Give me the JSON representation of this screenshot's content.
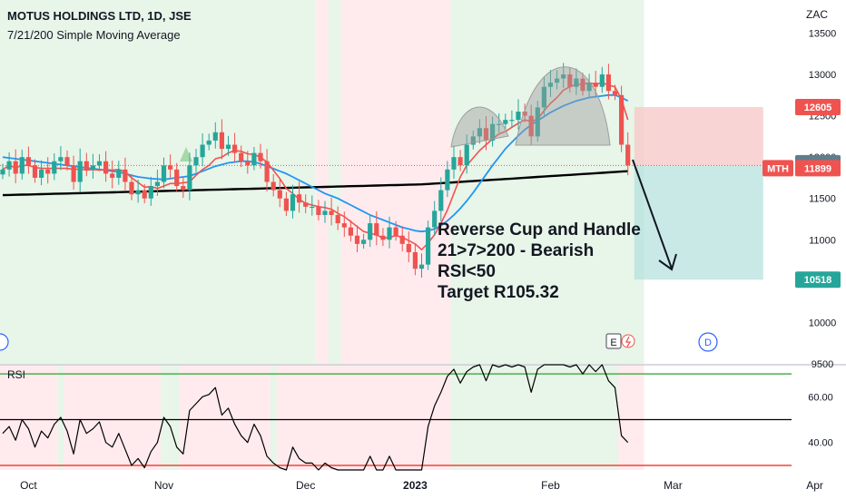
{
  "header": {
    "title": "MOTUS HOLDINGS LTD, 1D, JSE",
    "subtitle": "7/21/200 Simple Moving Average"
  },
  "currency": "ZAC",
  "rsi_label": "RSI",
  "symbol_tag": "MTH",
  "badges": {
    "earnings": "E",
    "dividend": "D"
  },
  "annotation": {
    "lines": [
      "Reverse Cup and Handle",
      "21>7>200 - Bearish",
      "RSI<50",
      "Target R105.32"
    ]
  },
  "colors": {
    "up": "#26a69a",
    "down": "#ef5350",
    "sma7": "#ef5350",
    "sma21": "#2196f3",
    "sma200": "#000000",
    "bull_bg": "#e8f5e9",
    "bear_bg": "#ffebee",
    "rsi_line": "#000000",
    "rsi_upper": "#4caf50",
    "rsi_lower": "#f44336"
  },
  "chart_data": {
    "type": "candlestick",
    "price_axis": {
      "ticks": [
        "13500",
        "13000",
        "12500",
        "12000",
        "11500",
        "11000",
        "10500",
        "10000",
        "9500"
      ],
      "ylim": [
        9500,
        13900
      ]
    },
    "price_labels": [
      {
        "value": 12605,
        "text": "12605",
        "color": "#ef5350"
      },
      {
        "value": 11905,
        "text": "11905",
        "color": "#607d8b"
      },
      {
        "value": 11899,
        "text": "11899",
        "color": "#ef5350"
      },
      {
        "value": 10518,
        "text": "10518",
        "color": "#26a69a"
      }
    ],
    "time_axis": {
      "ticks": [
        {
          "label": "Oct",
          "index": 4
        },
        {
          "label": "Nov",
          "index": 25
        },
        {
          "label": "Dec",
          "index": 47
        },
        {
          "label": "2023",
          "index": 64
        },
        {
          "label": "Feb",
          "index": 85
        },
        {
          "label": "Mar",
          "index": 104
        },
        {
          "label": "Apr",
          "index": 126
        }
      ]
    },
    "trade_zone": {
      "entry": 11899,
      "stop": 12605,
      "target": 10518,
      "from_index": 98,
      "to_index": 118
    },
    "rsi": {
      "ticks": [
        "60.00",
        "40.00"
      ],
      "levels": [
        70,
        50,
        30
      ],
      "ylim": [
        28,
        74
      ]
    },
    "regimes": [
      {
        "from": 0,
        "to": 49,
        "trend": "bull"
      },
      {
        "from": 49,
        "to": 51,
        "trend": "bear"
      },
      {
        "from": 51,
        "to": 53,
        "trend": "bull"
      },
      {
        "from": 53,
        "to": 70,
        "trend": "bear"
      },
      {
        "from": 70,
        "to": 100,
        "trend": "bull"
      }
    ],
    "rsi_regimes": [
      {
        "from": 0,
        "to": 9,
        "trend": "bear"
      },
      {
        "from": 9,
        "to": 10,
        "trend": "bull"
      },
      {
        "from": 10,
        "to": 25,
        "trend": "bear"
      },
      {
        "from": 25,
        "to": 28,
        "trend": "bull"
      },
      {
        "from": 28,
        "to": 42,
        "trend": "bear"
      },
      {
        "from": 42,
        "to": 43,
        "trend": "bull"
      },
      {
        "from": 43,
        "to": 70,
        "trend": "bear"
      },
      {
        "from": 70,
        "to": 96,
        "trend": "bull"
      },
      {
        "from": 96,
        "to": 100,
        "trend": "bear"
      }
    ],
    "close": [
      11850,
      11950,
      11800,
      12000,
      11900,
      11750,
      11850,
      11800,
      11950,
      12000,
      11900,
      11700,
      11950,
      11850,
      11900,
      11950,
      11800,
      11750,
      11850,
      11700,
      11550,
      11600,
      11500,
      11650,
      11700,
      11900,
      11850,
      11650,
      11600,
      11900,
      12000,
      12150,
      12200,
      12300,
      12100,
      12150,
      12050,
      11950,
      11900,
      12050,
      11950,
      11700,
      11600,
      11500,
      11350,
      11550,
      11450,
      11400,
      11400,
      11300,
      11350,
      11300,
      11200,
      11150,
      11050,
      10950,
      11000,
      11200,
      11050,
      11000,
      11150,
      11050,
      10950,
      10850,
      10650,
      10700,
      11150,
      11350,
      11600,
      11850,
      12000,
      11900,
      12150,
      12250,
      12350,
      12200,
      12400,
      12400,
      12450,
      12450,
      12550,
      12500,
      12250,
      12600,
      12850,
      12900,
      12950,
      13000,
      12850,
      12950,
      12800,
      12900,
      12850,
      13000,
      12800,
      12750,
      12150,
      11900
    ],
    "sma7": [
      11850,
      11900,
      11870,
      11900,
      11900,
      11875,
      11864,
      11864,
      11864,
      11864,
      11864,
      11850,
      11857,
      11843,
      11850,
      11843,
      11850,
      11843,
      11850,
      11821,
      11750,
      11693,
      11636,
      11643,
      11621,
      11650,
      11680,
      11680,
      11690,
      11700,
      11780,
      11850,
      11900,
      11980,
      12000,
      12050,
      12080,
      12070,
      12040,
      12030,
      12000,
      11940,
      11840,
      11740,
      11620,
      11560,
      11490,
      11440,
      11420,
      11400,
      11390,
      11370,
      11320,
      11280,
      11220,
      11160,
      11100,
      11080,
      11060,
      11020,
      11030,
      11050,
      11030,
      10990,
      10950,
      10880,
      10960,
      11060,
      11200,
      11360,
      11560,
      11760,
      11900,
      11990,
      12080,
      12150,
      12220,
      12280,
      12310,
      12360,
      12410,
      12450,
      12430,
      12460,
      12560,
      12650,
      12720,
      12810,
      12850,
      12880,
      12880,
      12900,
      12880,
      12900,
      12870,
      12850,
      12700,
      12450
    ],
    "sma21": [
      12000,
      11990,
      11980,
      11970,
      11960,
      11950,
      11940,
      11930,
      11920,
      11910,
      11900,
      11890,
      11880,
      11870,
      11860,
      11850,
      11840,
      11830,
      11820,
      11800,
      11780,
      11760,
      11750,
      11740,
      11735,
      11730,
      11740,
      11750,
      11760,
      11770,
      11800,
      11830,
      11860,
      11890,
      11910,
      11930,
      11940,
      11950,
      11950,
      11940,
      11920,
      11890,
      11860,
      11830,
      11800,
      11760,
      11720,
      11680,
      11640,
      11600,
      11560,
      11530,
      11500,
      11460,
      11420,
      11380,
      11340,
      11300,
      11270,
      11240,
      11210,
      11180,
      11150,
      11130,
      11110,
      11100,
      11110,
      11130,
      11170,
      11230,
      11300,
      11380,
      11470,
      11570,
      11680,
      11790,
      11900,
      12000,
      12100,
      12180,
      12260,
      12330,
      12390,
      12440,
      12490,
      12540,
      12580,
      12620,
      12650,
      12680,
      12700,
      12720,
      12730,
      12740,
      12750,
      12750,
      12720,
      12680
    ],
    "sma200": [
      11540,
      11542,
      11544,
      11546,
      11548,
      11550,
      11552,
      11554,
      11556,
      11558,
      11560,
      11562,
      11564,
      11566,
      11568,
      11570,
      11572,
      11574,
      11576,
      11578,
      11580,
      11582,
      11584,
      11586,
      11588,
      11590,
      11592,
      11594,
      11596,
      11598,
      11600,
      11602,
      11604,
      11606,
      11608,
      11610,
      11612,
      11614,
      11616,
      11618,
      11620,
      11622,
      11624,
      11626,
      11628,
      11630,
      11632,
      11634,
      11636,
      11638,
      11640,
      11642,
      11644,
      11646,
      11648,
      11650,
      11652,
      11654,
      11656,
      11658,
      11660,
      11662,
      11664,
      11666,
      11668,
      11670,
      11675,
      11680,
      11685,
      11690,
      11695,
      11700,
      11705,
      11710,
      11715,
      11720,
      11725,
      11730,
      11735,
      11740,
      11745,
      11750,
      11755,
      11760,
      11765,
      11770,
      11775,
      11780,
      11785,
      11790,
      11795,
      11800,
      11805,
      11810,
      11815,
      11820,
      11825,
      11830
    ],
    "rsi_values": [
      44,
      47,
      41,
      50,
      46,
      38,
      45,
      42,
      48,
      51,
      45,
      35,
      50,
      44,
      46,
      49,
      40,
      38,
      44,
      37,
      30,
      33,
      29,
      36,
      40,
      51,
      47,
      38,
      35,
      54,
      57,
      60,
      61,
      64,
      52,
      55,
      48,
      43,
      40,
      48,
      43,
      34,
      31,
      29,
      26,
      38,
      33,
      31,
      31,
      28,
      31,
      29,
      27,
      25,
      23,
      21,
      25,
      34,
      28,
      27,
      34,
      28,
      25,
      21,
      17,
      20,
      47,
      56,
      62,
      69,
      72,
      66,
      71,
      73,
      75,
      67,
      74,
      73,
      74,
      73,
      76,
      73,
      62,
      72,
      78,
      79,
      79,
      80,
      73,
      76,
      70,
      74,
      71,
      76,
      67,
      64,
      43,
      40
    ]
  }
}
